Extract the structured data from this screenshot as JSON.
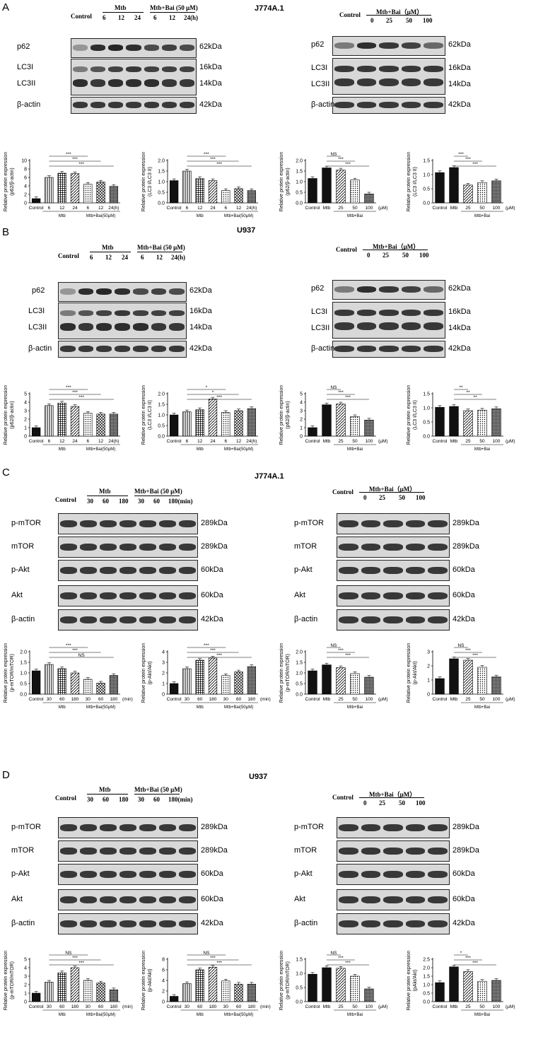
{
  "figure": {
    "panels": [
      {
        "letter": "A",
        "cell": "J774A.1"
      },
      {
        "letter": "B",
        "cell": "U937"
      },
      {
        "letter": "C",
        "cell": "J774A.1"
      },
      {
        "letter": "D",
        "cell": "U937"
      }
    ],
    "time_header": {
      "control": "Control",
      "mtb": "Mtb",
      "mtb_bai": "Mtb+Bai (50 μM)",
      "times_hours": [
        "6",
        "12",
        "24",
        "6",
        "12",
        "24(h)"
      ],
      "times_min": [
        "30",
        "60",
        "180",
        "30",
        "60",
        "180(min)"
      ]
    },
    "dose_header": {
      "control": "Control",
      "mtb_bai": "Mtb+Bai（μM）",
      "doses": [
        "0",
        "25",
        "50",
        "100"
      ]
    },
    "blot_labels": {
      "autophagy": [
        {
          "name": "p62",
          "kda": "62kDa"
        },
        {
          "name": "LC3I",
          "kda": "16kDa"
        },
        {
          "name": "LC3II",
          "kda": "14kDa"
        },
        {
          "name": "β-actin",
          "kda": "42kDa"
        }
      ],
      "mtor": [
        {
          "name": "p-mTOR",
          "kda": "289kDa"
        },
        {
          "name": "mTOR",
          "kda": "289kDa"
        },
        {
          "name": "p-Akt",
          "kda": "60kDa"
        },
        {
          "name": "Akt",
          "kda": "60kDa"
        },
        {
          "name": "β-actin",
          "kda": "42kDa"
        }
      ]
    },
    "colors": {
      "bar_dark": "#111111",
      "bar_hatch": "#555555",
      "bar_light": "#bbbbbb"
    }
  },
  "chart_data": [
    {
      "type": "bar",
      "panel": "A",
      "ylabel": "Relative protein expression (p62/β-actin)",
      "categories": [
        "Control",
        "6",
        "12",
        "24",
        "6",
        "12",
        "24(h)"
      ],
      "values": [
        1.0,
        6.0,
        7.0,
        6.9,
        4.4,
        4.9,
        3.9
      ],
      "ylim": [
        0,
        10
      ],
      "yticks": [
        "0",
        "2",
        "4",
        "6",
        "8",
        "10"
      ],
      "groups": [
        "Mtb",
        "Mtb+Bai(50μM)"
      ],
      "sig": [
        "***",
        "***",
        "***"
      ]
    },
    {
      "type": "bar",
      "panel": "A",
      "ylabel": "Relative protein expression (LC3 I/LC3 II)",
      "categories": [
        "Control",
        "6",
        "12",
        "24",
        "6",
        "12",
        "24(h)"
      ],
      "values": [
        1.05,
        1.5,
        1.15,
        1.05,
        0.58,
        0.67,
        0.58
      ],
      "ylim": [
        0,
        2.0
      ],
      "yticks": [
        "0.0",
        "0.5",
        "1.0",
        "1.5",
        "2.0"
      ],
      "groups": [
        "Mtb",
        "Mtb+Bai(50μM)"
      ],
      "sig": [
        "***",
        "***",
        "***"
      ]
    },
    {
      "type": "bar",
      "panel": "A",
      "ylabel": "Relative protein expression (p62/β-actin)",
      "categories": [
        "Control",
        "Mtb",
        "25",
        "50",
        "100"
      ],
      "values": [
        1.15,
        1.65,
        1.55,
        1.08,
        0.42
      ],
      "ylim": [
        0,
        2.0
      ],
      "yticks": [
        "0.0",
        "0.5",
        "1.0",
        "1.5",
        "2.0"
      ],
      "unit": "(μM)",
      "groups": [
        "Mtb+Bai"
      ],
      "sig": [
        "NS",
        "***",
        "***"
      ]
    },
    {
      "type": "bar",
      "panel": "A",
      "ylabel": "Relative protein expression (LC3 I/LC3 II)",
      "categories": [
        "Control",
        "Mtb",
        "25",
        "50",
        "100"
      ],
      "values": [
        1.07,
        1.25,
        0.63,
        0.72,
        0.78
      ],
      "ylim": [
        0,
        1.5
      ],
      "yticks": [
        "0.0",
        "0.5",
        "1.0",
        "1.5"
      ],
      "unit": "(μM)",
      "groups": [
        "Mtb+Bai"
      ],
      "sig": [
        "***",
        "***",
        "***"
      ]
    },
    {
      "type": "bar",
      "panel": "B",
      "ylabel": "Relative protein expression (p62/β-actin)",
      "categories": [
        "Control",
        "6",
        "12",
        "24",
        "6",
        "12",
        "24(h)"
      ],
      "values": [
        1.0,
        3.6,
        3.9,
        3.5,
        2.7,
        2.6,
        2.6
      ],
      "ylim": [
        0,
        5
      ],
      "yticks": [
        "0",
        "1",
        "2",
        "3",
        "4",
        "5"
      ],
      "groups": [
        "Mtb",
        "Mtb+Bai(50μM)"
      ],
      "sig": [
        "***",
        "***",
        "***"
      ]
    },
    {
      "type": "bar",
      "panel": "B",
      "ylabel": "Relative protein expression (LC3 I/LC3 II)",
      "categories": [
        "Control",
        "6",
        "12",
        "24",
        "6",
        "12",
        "24(h)"
      ],
      "values": [
        1.0,
        1.15,
        1.25,
        1.75,
        1.12,
        1.2,
        1.3
      ],
      "ylim": [
        0,
        2.0
      ],
      "yticks": [
        "0.0",
        "0.5",
        "1.0",
        "1.5",
        "2.0"
      ],
      "groups": [
        "Mtb",
        "Mtb+Bai(50μM)"
      ],
      "sig": [
        "*",
        "*",
        "***"
      ]
    },
    {
      "type": "bar",
      "panel": "B",
      "ylabel": "Relative protein expression (p62/β-actin)",
      "categories": [
        "Control",
        "Mtb",
        "25",
        "50",
        "100"
      ],
      "values": [
        1.0,
        3.7,
        3.8,
        2.3,
        1.9
      ],
      "ylim": [
        0,
        5
      ],
      "yticks": [
        "0",
        "1",
        "2",
        "3",
        "4",
        "5"
      ],
      "unit": "(μM)",
      "groups": [
        "Mtb+Bai"
      ],
      "sig": [
        "NS",
        "***",
        "***"
      ]
    },
    {
      "type": "bar",
      "panel": "B",
      "ylabel": "Relative protein expression (LC3 I/LC3 II)",
      "categories": [
        "Control",
        "Mtb",
        "25",
        "50",
        "100"
      ],
      "values": [
        1.02,
        1.05,
        0.9,
        0.92,
        0.97
      ],
      "ylim": [
        0,
        1.5
      ],
      "yticks": [
        "0.0",
        "0.5",
        "1.0",
        "1.5"
      ],
      "unit": "(μM)",
      "groups": [
        "Mtb+Bai"
      ],
      "sig": [
        "**",
        "**",
        "**"
      ]
    },
    {
      "type": "bar",
      "panel": "C",
      "ylabel": "Relative protein expression (p-mTOR/mTOR)",
      "categories": [
        "Control",
        "30",
        "60",
        "180",
        "30",
        "60",
        "180"
      ],
      "values": [
        1.1,
        1.4,
        1.2,
        1.0,
        0.7,
        0.52,
        0.88
      ],
      "ylim": [
        0,
        2.0
      ],
      "yticks": [
        "0.0",
        "0.5",
        "1.0",
        "1.5",
        "2.0"
      ],
      "unit": "(min)",
      "groups": [
        "Mtb",
        "Mtb+Bai(50μM)"
      ],
      "sig": [
        "***",
        "***",
        "NS"
      ]
    },
    {
      "type": "bar",
      "panel": "C",
      "ylabel": "Relative protein expression (p-Akt/Akt)",
      "categories": [
        "Control",
        "30",
        "60",
        "180",
        "30",
        "60",
        "180"
      ],
      "values": [
        1.0,
        2.4,
        3.2,
        3.4,
        1.75,
        2.1,
        2.6
      ],
      "ylim": [
        0,
        4
      ],
      "yticks": [
        "0",
        "1",
        "2",
        "3",
        "4"
      ],
      "unit": "(min)",
      "groups": [
        "Mtb",
        "Mtb+Bai(50μM)"
      ],
      "sig": [
        "***",
        "***",
        "***"
      ]
    },
    {
      "type": "bar",
      "panel": "C",
      "ylabel": "Relative protein expression (p-mTOR/mTOR)",
      "categories": [
        "Control",
        "Mtb",
        "25",
        "50",
        "100"
      ],
      "values": [
        1.1,
        1.38,
        1.25,
        0.97,
        0.8
      ],
      "ylim": [
        0,
        2.0
      ],
      "yticks": [
        "0.0",
        "0.5",
        "1.0",
        "1.5",
        "2.0"
      ],
      "unit": "(μM)",
      "groups": [
        "Mtb+Bai"
      ],
      "sig": [
        "NS",
        "***",
        "***"
      ]
    },
    {
      "type": "bar",
      "panel": "C",
      "ylabel": "Relative protein expression (p-Akt/Akt)",
      "categories": [
        "Control",
        "Mtb",
        "25",
        "50",
        "100"
      ],
      "values": [
        1.1,
        2.5,
        2.4,
        1.9,
        1.22
      ],
      "ylim": [
        0,
        3
      ],
      "yticks": [
        "0",
        "1",
        "2",
        "3"
      ],
      "unit": "(μM)",
      "groups": [
        "Mtb+Bai"
      ],
      "sig": [
        "NS",
        "***",
        "***"
      ]
    },
    {
      "type": "bar",
      "panel": "D",
      "ylabel": "Relative protein expression (p-mTOR/mTOR)",
      "categories": [
        "Control",
        "30",
        "60",
        "180",
        "30",
        "60",
        "180"
      ],
      "values": [
        1.0,
        2.3,
        3.4,
        4.0,
        2.5,
        2.2,
        1.4
      ],
      "ylim": [
        0,
        5
      ],
      "yticks": [
        "0",
        "1",
        "2",
        "3",
        "4",
        "5"
      ],
      "unit": "(min)",
      "groups": [
        "Mtb",
        "Mtb+Bai(50μM)"
      ],
      "sig": [
        "NS",
        "***",
        "***"
      ]
    },
    {
      "type": "bar",
      "panel": "D",
      "ylabel": "Relative protein expression (p-Akt/Akt)",
      "categories": [
        "Control",
        "30",
        "60",
        "180",
        "30",
        "60",
        "180"
      ],
      "values": [
        1.0,
        3.4,
        6.0,
        6.5,
        3.9,
        3.3,
        3.3
      ],
      "ylim": [
        0,
        8
      ],
      "yticks": [
        "0",
        "2",
        "4",
        "6",
        "8"
      ],
      "unit": "(min)",
      "groups": [
        "Mtb",
        "Mtb+Bai(50μM)"
      ],
      "sig": [
        "NS",
        "***",
        "***"
      ]
    },
    {
      "type": "bar",
      "panel": "D",
      "ylabel": "Relative protein expression (p-mTOR/mTOR)",
      "categories": [
        "Control",
        "Mtb",
        "25",
        "50",
        "100"
      ],
      "values": [
        0.97,
        1.2,
        1.18,
        0.9,
        0.45
      ],
      "ylim": [
        0,
        1.5
      ],
      "yticks": [
        "0.0",
        "0.5",
        "1.0",
        "1.5"
      ],
      "unit": "(μM)",
      "groups": [
        "Mtb+Bai"
      ],
      "sig": [
        "NS",
        "***",
        "***"
      ]
    },
    {
      "type": "bar",
      "panel": "D",
      "ylabel": "Relative protein expression (pAkt/Akt)",
      "categories": [
        "Control",
        "Mtb",
        "25",
        "50",
        "100"
      ],
      "values": [
        1.12,
        2.05,
        1.78,
        1.2,
        1.25
      ],
      "ylim": [
        0,
        2.5
      ],
      "yticks": [
        "0.0",
        "0.5",
        "1.0",
        "1.5",
        "2.0",
        "2.5"
      ],
      "unit": "(μM)",
      "groups": [
        "Mtb+Bai"
      ],
      "sig": [
        "*",
        "***",
        "***"
      ]
    }
  ]
}
